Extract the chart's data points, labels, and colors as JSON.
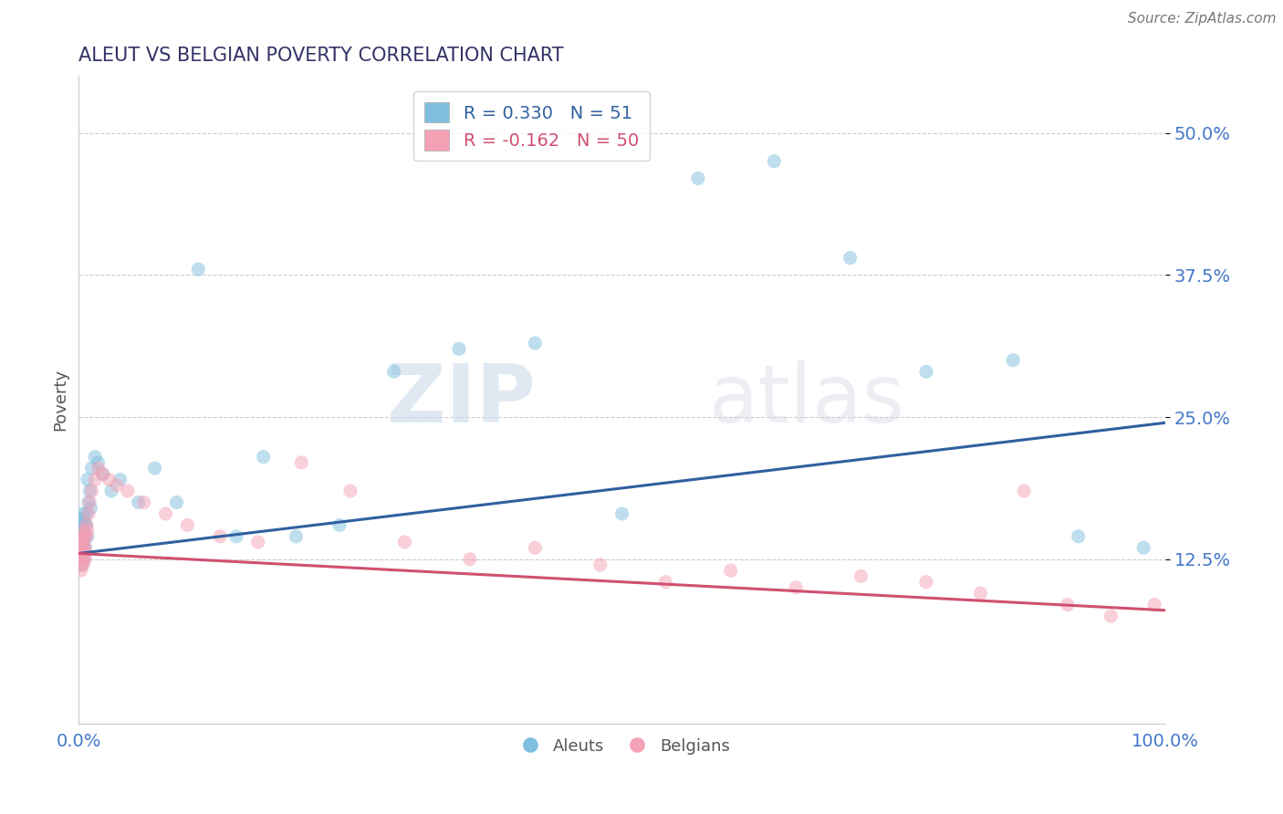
{
  "title": "ALEUT VS BELGIAN POVERTY CORRELATION CHART",
  "source": "Source: ZipAtlas.com",
  "ylabel": "Poverty",
  "aleut_R": 0.33,
  "aleut_N": 51,
  "belgian_R": -0.162,
  "belgian_N": 50,
  "aleut_color": "#7fbfdf",
  "belgian_color": "#f4a0b5",
  "aleut_line_color": "#3060a0",
  "belgian_line_color": "#d05070",
  "background_color": "#ffffff",
  "grid_color": "#cccccc",
  "title_color": "#333366",
  "axis_label_color": "#4477cc",
  "xlim": [
    0.0,
    1.0
  ],
  "ylim": [
    -0.02,
    0.55
  ],
  "yticks": [
    0.125,
    0.25,
    0.375,
    0.5
  ],
  "xticks": [
    0.0,
    1.0
  ],
  "xtick_labels": [
    "0.0%",
    "100.0%"
  ],
  "aleut_x": [
    0.001,
    0.001,
    0.002,
    0.002,
    0.002,
    0.003,
    0.003,
    0.003,
    0.003,
    0.004,
    0.004,
    0.004,
    0.005,
    0.005,
    0.005,
    0.005,
    0.006,
    0.006,
    0.006,
    0.007,
    0.007,
    0.008,
    0.008,
    0.009,
    0.01,
    0.011,
    0.012,
    0.015,
    0.018,
    0.022,
    0.03,
    0.038,
    0.055,
    0.07,
    0.09,
    0.11,
    0.145,
    0.17,
    0.2,
    0.24,
    0.29,
    0.35,
    0.42,
    0.5,
    0.57,
    0.64,
    0.71,
    0.78,
    0.86,
    0.92,
    0.98
  ],
  "aleut_y": [
    0.155,
    0.145,
    0.16,
    0.14,
    0.13,
    0.165,
    0.15,
    0.135,
    0.12,
    0.155,
    0.145,
    0.125,
    0.16,
    0.15,
    0.14,
    0.13,
    0.155,
    0.145,
    0.135,
    0.165,
    0.155,
    0.145,
    0.195,
    0.175,
    0.185,
    0.17,
    0.205,
    0.215,
    0.21,
    0.2,
    0.185,
    0.195,
    0.175,
    0.205,
    0.175,
    0.38,
    0.145,
    0.215,
    0.145,
    0.155,
    0.29,
    0.31,
    0.315,
    0.165,
    0.46,
    0.475,
    0.39,
    0.29,
    0.3,
    0.145,
    0.135
  ],
  "belgian_x": [
    0.001,
    0.001,
    0.002,
    0.002,
    0.002,
    0.003,
    0.003,
    0.003,
    0.004,
    0.004,
    0.004,
    0.005,
    0.005,
    0.005,
    0.006,
    0.006,
    0.006,
    0.007,
    0.007,
    0.008,
    0.009,
    0.01,
    0.012,
    0.015,
    0.018,
    0.022,
    0.028,
    0.035,
    0.045,
    0.06,
    0.08,
    0.1,
    0.13,
    0.165,
    0.205,
    0.25,
    0.3,
    0.36,
    0.42,
    0.48,
    0.54,
    0.6,
    0.66,
    0.72,
    0.78,
    0.83,
    0.87,
    0.91,
    0.95,
    0.99
  ],
  "belgian_y": [
    0.13,
    0.125,
    0.14,
    0.12,
    0.115,
    0.145,
    0.135,
    0.125,
    0.14,
    0.13,
    0.12,
    0.15,
    0.135,
    0.125,
    0.145,
    0.135,
    0.125,
    0.155,
    0.145,
    0.15,
    0.165,
    0.175,
    0.185,
    0.195,
    0.205,
    0.2,
    0.195,
    0.19,
    0.185,
    0.175,
    0.165,
    0.155,
    0.145,
    0.14,
    0.21,
    0.185,
    0.14,
    0.125,
    0.135,
    0.12,
    0.105,
    0.115,
    0.1,
    0.11,
    0.105,
    0.095,
    0.185,
    0.085,
    0.075,
    0.085
  ],
  "scatter_size": 120,
  "scatter_alpha": 0.5,
  "line_width": 2.2,
  "watermark_text": "ZIPatlas",
  "legend_label_aleut": "R = 0.330   N = 51",
  "legend_label_belgian": "R = -0.162   N = 50",
  "bottom_legend_aleuts": "Aleuts",
  "bottom_legend_belgians": "Belgians"
}
